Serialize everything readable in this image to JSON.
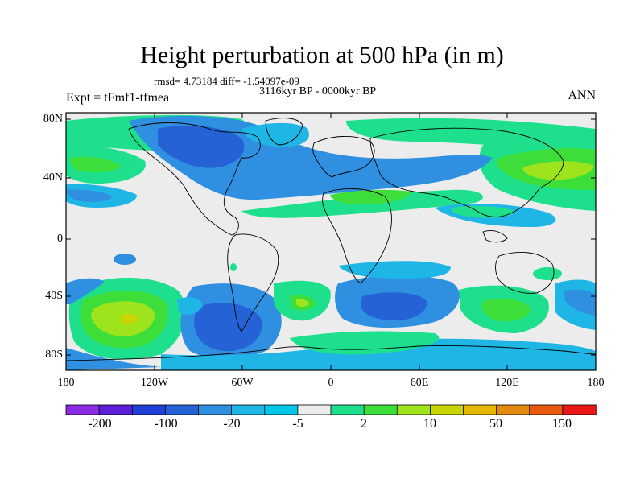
{
  "title": "Height perturbation at 500 hPa (in m)",
  "stats": "rmsd= 4.73184 diff= -1.54097e-09",
  "experiment": "Expt = tFmf1-tfmea",
  "period": "3116kyr BP - 0000kyr BP",
  "season": "ANN",
  "lat_labels": [
    "80N",
    "40N",
    "0",
    "40S",
    "80S"
  ],
  "lon_labels": [
    "180",
    "120W",
    "60W",
    "0",
    "60E",
    "120E",
    "180"
  ],
  "colorbar": {
    "labels": [
      "-200",
      "-100",
      "-20",
      "-5",
      "2",
      "10",
      "50",
      "150"
    ],
    "colors": [
      "#8b2be2",
      "#5a1fd6",
      "#1f3fd8",
      "#2462d6",
      "#2f8fe0",
      "#1fb6e6",
      "#00c8e8",
      "#ececec",
      "#1ee08c",
      "#3ede3a",
      "#9ee41c",
      "#c9d400",
      "#e4b800",
      "#e48a10",
      "#e85a10",
      "#e81818"
    ]
  },
  "legend_colors": {
    "neutral": "#ececec",
    "light_blue": "#1fb6e6",
    "mid_blue": "#2f8fe0",
    "deep_blue": "#2462d6",
    "green": "#1ee08c",
    "bright_green": "#3ede3a",
    "yellow_green": "#9ee41c",
    "yellow": "#c9d400",
    "orange": "#e4b800"
  }
}
